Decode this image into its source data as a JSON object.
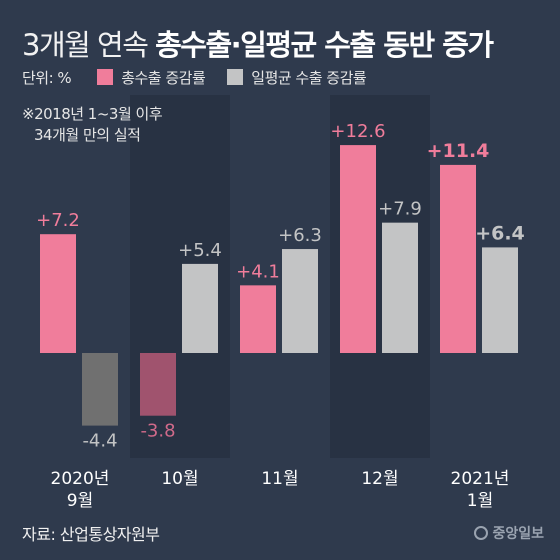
{
  "title": {
    "light": "3개월 연속",
    "bold": "총수출·일평균 수출 동반 증가"
  },
  "legend": {
    "unit": "단위: %",
    "items": [
      {
        "label": "총수출 증감률",
        "color": "#f07d9b"
      },
      {
        "label": "일평균 수출 증감률",
        "color": "#c3c4c5"
      }
    ]
  },
  "note": {
    "line1": "※2018년 1~3월 이후",
    "line2": "34개월 만의 실적"
  },
  "source": "자료: 산업통상자원부",
  "logo": "중앙일보",
  "colors": {
    "background": "#2f3a4d",
    "band": "#283243",
    "pink": "#f07d9b",
    "gray": "#c3c4c5",
    "pink_negative": "#a0536e",
    "gray_negative": "#707070"
  },
  "chart_data": {
    "type": "bar",
    "categories": [
      [
        "2020년",
        "9월"
      ],
      [
        "10월"
      ],
      [
        "11월"
      ],
      [
        "12월"
      ],
      [
        "2021년",
        "1월"
      ]
    ],
    "series": [
      {
        "name": "총수출 증감률",
        "values": [
          7.2,
          -3.8,
          4.1,
          12.6,
          11.4
        ]
      },
      {
        "name": "일평균 수출 증감률",
        "values": [
          -4.4,
          5.4,
          6.3,
          7.9,
          6.4
        ]
      }
    ],
    "value_labels": [
      [
        "+7.2",
        "-3.8",
        "+4.1",
        "+12.6",
        "+11.4"
      ],
      [
        "-4.4",
        "+5.4",
        "+6.3",
        "+7.9",
        "+6.4"
      ]
    ],
    "bold_category_index": 4,
    "grid": false,
    "legend_position": "top-left"
  }
}
